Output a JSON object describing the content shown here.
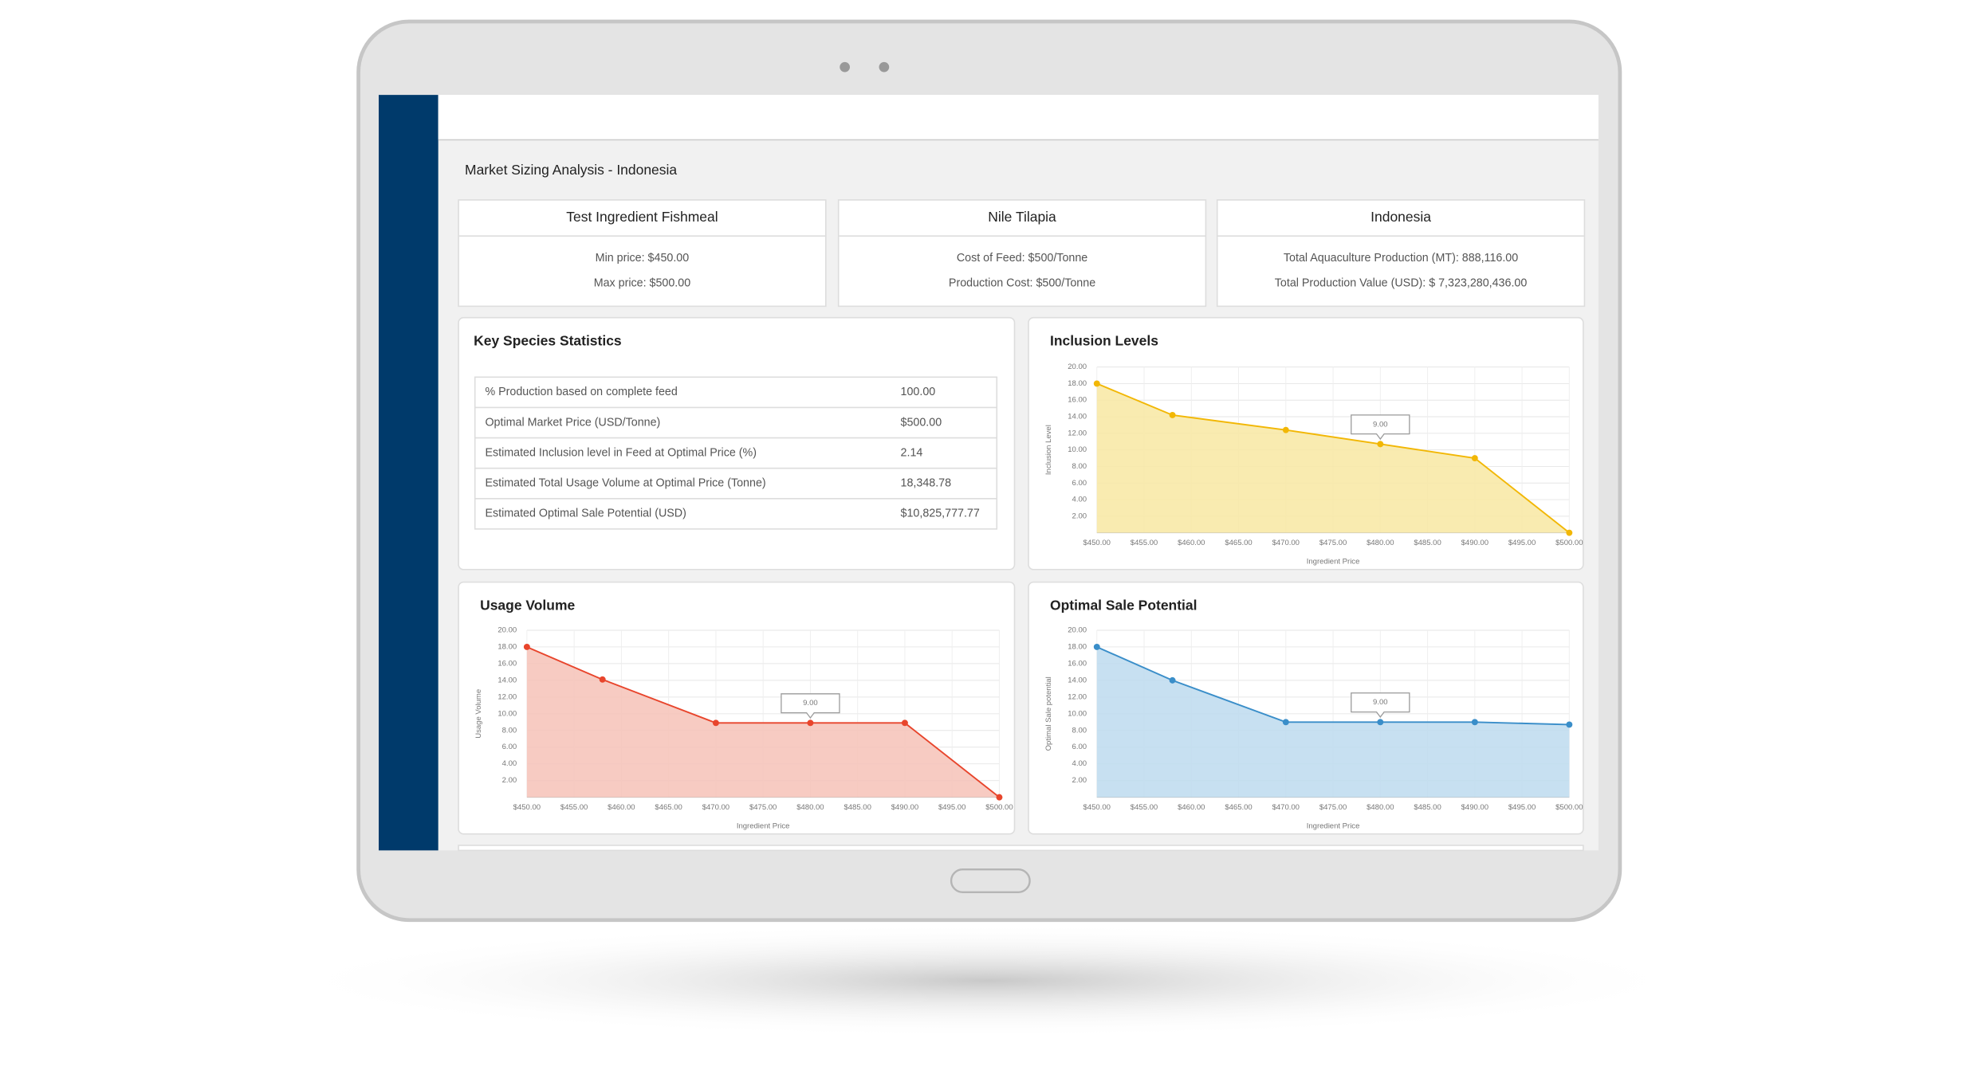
{
  "header": {
    "title": "Market Sizing Analysis - Indonesia"
  },
  "cards": [
    {
      "title": "Test Ingredient Fishmeal",
      "lines": [
        "Min price: $450.00",
        "Max price: $500.00"
      ]
    },
    {
      "title": "Nile Tilapia",
      "lines": [
        "Cost of Feed: $500/Tonne",
        "Production Cost: $500/Tonne"
      ]
    },
    {
      "title": "Indonesia",
      "lines": [
        "Total Aquaculture Production (MT): 888,116.00",
        "Total Production Value (USD): $ 7,323,280,436.00"
      ]
    }
  ],
  "table": {
    "title": "Key Species Statistics",
    "rows": [
      [
        "% Production based on complete feed",
        "100.00"
      ],
      [
        "Optimal Market Price (USD/Tonne)",
        "$500.00"
      ],
      [
        "Estimated Inclusion level in Feed at Optimal Price (%)",
        "2.14"
      ],
      [
        "Estimated Total Usage Volume at Optimal Price (Tonne)",
        "18,348.78"
      ],
      [
        "Estimated Optimal Sale Potential (USD)",
        "$10,825,777.77"
      ]
    ]
  },
  "chart_data": [
    {
      "type": "area",
      "title": "Inclusion Levels",
      "x_label": "Ingredient Price",
      "y_label": "Inclusion Level",
      "tooltip": "9.00",
      "x": [
        450,
        458,
        470,
        480,
        490,
        500
      ],
      "series": [
        {
          "color": "#f2b705",
          "fill": "#f8e7a2",
          "values": [
            18,
            14.2,
            12.4,
            10.7,
            9,
            0
          ]
        }
      ],
      "xlim": [
        450,
        500
      ],
      "ylim": [
        0,
        20
      ],
      "grid": true,
      "xticks": [
        {
          "value": 450,
          "label": "$450.00"
        },
        {
          "value": 455,
          "label": "$455.00"
        },
        {
          "value": 460,
          "label": "$460.00"
        },
        {
          "value": 465,
          "label": "$465.00"
        },
        {
          "value": 470,
          "label": "$470.00"
        },
        {
          "value": 475,
          "label": "$475.00"
        },
        {
          "value": 480,
          "label": "$480.00"
        },
        {
          "value": 485,
          "label": "$485.00"
        },
        {
          "value": 490,
          "label": "$490.00"
        },
        {
          "value": 495,
          "label": "$495.00"
        },
        {
          "value": 500,
          "label": "$500.00"
        }
      ],
      "yticks": [
        {
          "value": 2,
          "label": "2.00"
        },
        {
          "value": 4,
          "label": "4.00"
        },
        {
          "value": 6,
          "label": "6.00"
        },
        {
          "value": 8,
          "label": "8.00"
        },
        {
          "value": 10,
          "label": "10.00"
        },
        {
          "value": 12,
          "label": "12.00"
        },
        {
          "value": 14,
          "label": "14.00"
        },
        {
          "value": 16,
          "label": "16.00"
        },
        {
          "value": 18,
          "label": "18.00"
        },
        {
          "value": 20,
          "label": "20.00"
        }
      ]
    },
    {
      "type": "area",
      "title": "Usage Volume",
      "x_label": "Ingredient Price",
      "y_label": "Usage Volume",
      "tooltip": "9.00",
      "x": [
        450,
        458,
        470,
        480,
        490,
        500
      ],
      "series": [
        {
          "color": "#e8452c",
          "fill": "#f6c2b7",
          "values": [
            18,
            14.1,
            8.9,
            8.9,
            8.9,
            0
          ]
        }
      ],
      "xlim": [
        450,
        500
      ],
      "ylim": [
        0,
        20
      ],
      "grid": true,
      "xticks": [
        {
          "value": 450,
          "label": "$450.00"
        },
        {
          "value": 455,
          "label": "$455.00"
        },
        {
          "value": 460,
          "label": "$460.00"
        },
        {
          "value": 465,
          "label": "$465.00"
        },
        {
          "value": 470,
          "label": "$470.00"
        },
        {
          "value": 475,
          "label": "$475.00"
        },
        {
          "value": 480,
          "label": "$480.00"
        },
        {
          "value": 485,
          "label": "$485.00"
        },
        {
          "value": 490,
          "label": "$490.00"
        },
        {
          "value": 495,
          "label": "$495.00"
        },
        {
          "value": 500,
          "label": "$500.00"
        }
      ],
      "yticks": [
        {
          "value": 2,
          "label": "2.00"
        },
        {
          "value": 4,
          "label": "4.00"
        },
        {
          "value": 6,
          "label": "6.00"
        },
        {
          "value": 8,
          "label": "8.00"
        },
        {
          "value": 10,
          "label": "10.00"
        },
        {
          "value": 12,
          "label": "12.00"
        },
        {
          "value": 14,
          "label": "14.00"
        },
        {
          "value": 16,
          "label": "16.00"
        },
        {
          "value": 18,
          "label": "18.00"
        },
        {
          "value": 20,
          "label": "20.00"
        }
      ]
    },
    {
      "type": "area",
      "title": "Optimal Sale Potential",
      "x_label": "Ingredient Price",
      "y_label": "Optimal Sale potential",
      "tooltip": "9.00",
      "x": [
        450,
        458,
        470,
        480,
        490,
        500
      ],
      "series": [
        {
          "color": "#3a8ec9",
          "fill": "#bddaee",
          "values": [
            18,
            14,
            9,
            9,
            9,
            8.7
          ]
        }
      ],
      "xlim": [
        450,
        500
      ],
      "ylim": [
        0,
        20
      ],
      "grid": true,
      "xticks": [
        {
          "value": 450,
          "label": "$450.00"
        },
        {
          "value": 455,
          "label": "$455.00"
        },
        {
          "value": 460,
          "label": "$460.00"
        },
        {
          "value": 465,
          "label": "$465.00"
        },
        {
          "value": 470,
          "label": "$470.00"
        },
        {
          "value": 475,
          "label": "$475.00"
        },
        {
          "value": 480,
          "label": "$480.00"
        },
        {
          "value": 485,
          "label": "$485.00"
        },
        {
          "value": 490,
          "label": "$490.00"
        },
        {
          "value": 495,
          "label": "$495.00"
        },
        {
          "value": 500,
          "label": "$500.00"
        }
      ],
      "yticks": [
        {
          "value": 2,
          "label": "2.00"
        },
        {
          "value": 4,
          "label": "4.00"
        },
        {
          "value": 6,
          "label": "6.00"
        },
        {
          "value": 8,
          "label": "8.00"
        },
        {
          "value": 10,
          "label": "10.00"
        },
        {
          "value": 12,
          "label": "12.00"
        },
        {
          "value": 14,
          "label": "14.00"
        },
        {
          "value": 16,
          "label": "16.00"
        },
        {
          "value": 18,
          "label": "18.00"
        },
        {
          "value": 20,
          "label": "20.00"
        }
      ]
    }
  ]
}
